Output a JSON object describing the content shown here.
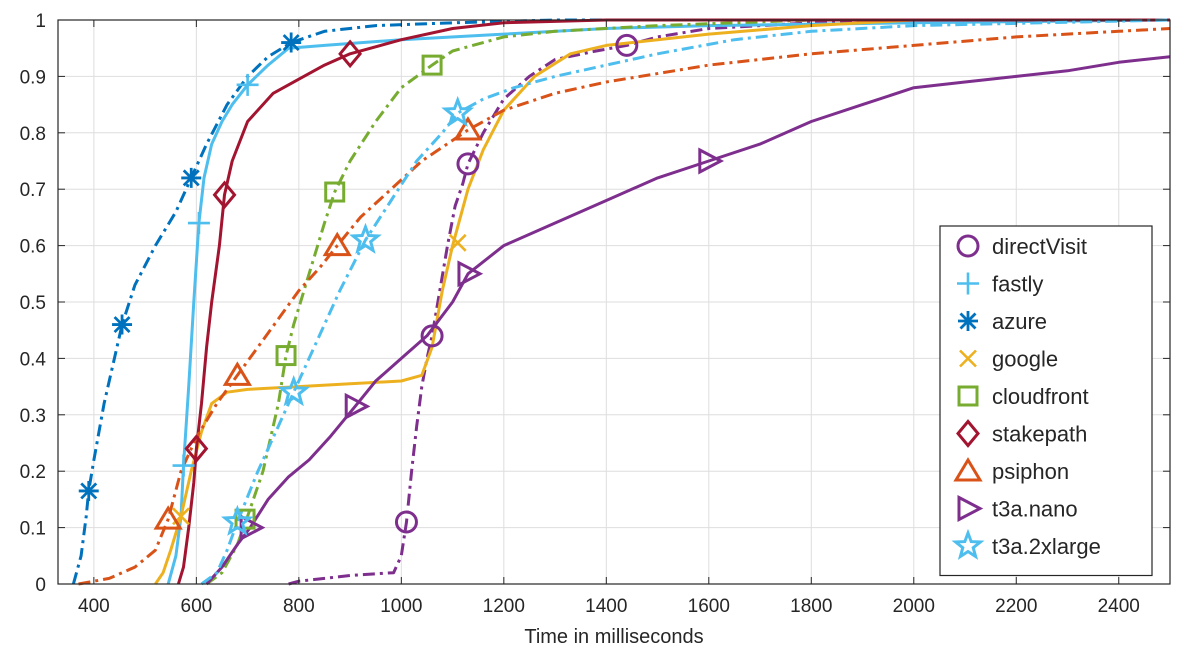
{
  "chart_data": {
    "type": "line",
    "title": "",
    "xlabel": "Time in milliseconds",
    "ylabel": "",
    "xlim": [
      330,
      2500
    ],
    "ylim": [
      0,
      1
    ],
    "x_ticks": [
      400,
      600,
      800,
      1000,
      1200,
      1400,
      1600,
      1800,
      2000,
      2200,
      2400
    ],
    "y_ticks": [
      0,
      0.1,
      0.2,
      0.3,
      0.4,
      0.5,
      0.6,
      0.7,
      0.8,
      0.9,
      1
    ],
    "grid": true,
    "legend_position": "right",
    "series": [
      {
        "name": "directVisit",
        "color": "#7E2F8E",
        "line_style": "dashdot",
        "marker": "circle",
        "points": [
          [
            780,
            0
          ],
          [
            800,
            0.005
          ],
          [
            850,
            0.01
          ],
          [
            900,
            0.015
          ],
          [
            950,
            0.018
          ],
          [
            985,
            0.02
          ],
          [
            1000,
            0.05
          ],
          [
            1010,
            0.11
          ],
          [
            1020,
            0.2
          ],
          [
            1030,
            0.28
          ],
          [
            1040,
            0.35
          ],
          [
            1050,
            0.4
          ],
          [
            1060,
            0.44
          ],
          [
            1075,
            0.52
          ],
          [
            1090,
            0.6
          ],
          [
            1105,
            0.67
          ],
          [
            1120,
            0.71
          ],
          [
            1130,
            0.745
          ],
          [
            1160,
            0.8
          ],
          [
            1200,
            0.86
          ],
          [
            1250,
            0.9
          ],
          [
            1300,
            0.93
          ],
          [
            1380,
            0.945
          ],
          [
            1440,
            0.955
          ],
          [
            1500,
            0.97
          ],
          [
            1600,
            0.985
          ],
          [
            1800,
            0.995
          ],
          [
            2000,
            1
          ],
          [
            2500,
            1
          ]
        ],
        "markers": [
          [
            1010,
            0.11
          ],
          [
            1060,
            0.44
          ],
          [
            1130,
            0.745
          ],
          [
            1440,
            0.955
          ]
        ]
      },
      {
        "name": "fastly",
        "color": "#4DBEEE",
        "line_style": "solid",
        "marker": "plus",
        "points": [
          [
            545,
            0
          ],
          [
            560,
            0.05
          ],
          [
            570,
            0.12
          ],
          [
            575,
            0.21
          ],
          [
            585,
            0.35
          ],
          [
            595,
            0.5
          ],
          [
            605,
            0.64
          ],
          [
            615,
            0.72
          ],
          [
            630,
            0.78
          ],
          [
            650,
            0.82
          ],
          [
            670,
            0.85
          ],
          [
            700,
            0.885
          ],
          [
            740,
            0.92
          ],
          [
            780,
            0.95
          ],
          [
            850,
            0.955
          ],
          [
            1000,
            0.965
          ],
          [
            1200,
            0.975
          ],
          [
            1400,
            0.985
          ],
          [
            1600,
            0.99
          ],
          [
            2000,
            0.995
          ],
          [
            2500,
            1
          ]
        ],
        "markers": [
          [
            575,
            0.21
          ],
          [
            605,
            0.64
          ],
          [
            700,
            0.885
          ]
        ]
      },
      {
        "name": "azure",
        "color": "#0072BD",
        "line_style": "dashdot",
        "marker": "asterisk",
        "points": [
          [
            360,
            0
          ],
          [
            375,
            0.05
          ],
          [
            385,
            0.12
          ],
          [
            390,
            0.165
          ],
          [
            400,
            0.22
          ],
          [
            420,
            0.32
          ],
          [
            440,
            0.4
          ],
          [
            455,
            0.46
          ],
          [
            480,
            0.53
          ],
          [
            520,
            0.6
          ],
          [
            560,
            0.66
          ],
          [
            590,
            0.72
          ],
          [
            620,
            0.78
          ],
          [
            660,
            0.85
          ],
          [
            700,
            0.9
          ],
          [
            740,
            0.935
          ],
          [
            785,
            0.96
          ],
          [
            850,
            0.98
          ],
          [
            950,
            0.99
          ],
          [
            1100,
            0.995
          ],
          [
            1300,
            1
          ],
          [
            2500,
            1
          ]
        ],
        "markers": [
          [
            390,
            0.165
          ],
          [
            455,
            0.46
          ],
          [
            590,
            0.72
          ],
          [
            785,
            0.96
          ]
        ]
      },
      {
        "name": "google",
        "color": "#EDB120",
        "line_style": "solid",
        "marker": "x",
        "points": [
          [
            520,
            0
          ],
          [
            535,
            0.02
          ],
          [
            550,
            0.06
          ],
          [
            570,
            0.12
          ],
          [
            590,
            0.2
          ],
          [
            610,
            0.27
          ],
          [
            630,
            0.32
          ],
          [
            660,
            0.34
          ],
          [
            700,
            0.345
          ],
          [
            800,
            0.35
          ],
          [
            900,
            0.355
          ],
          [
            1000,
            0.36
          ],
          [
            1040,
            0.37
          ],
          [
            1060,
            0.42
          ],
          [
            1080,
            0.52
          ],
          [
            1100,
            0.6
          ],
          [
            1130,
            0.7
          ],
          [
            1160,
            0.77
          ],
          [
            1200,
            0.84
          ],
          [
            1260,
            0.9
          ],
          [
            1330,
            0.94
          ],
          [
            1400,
            0.955
          ],
          [
            1500,
            0.965
          ],
          [
            1600,
            0.975
          ],
          [
            1800,
            0.99
          ],
          [
            2000,
            1
          ],
          [
            2500,
            1
          ]
        ],
        "markers": [
          [
            570,
            0.12
          ],
          [
            1110,
            0.605
          ]
        ]
      },
      {
        "name": "cloudfront",
        "color": "#77AC30",
        "line_style": "dashdot",
        "marker": "square",
        "points": [
          [
            620,
            0
          ],
          [
            650,
            0.02
          ],
          [
            680,
            0.07
          ],
          [
            700,
            0.12
          ],
          [
            730,
            0.2
          ],
          [
            760,
            0.32
          ],
          [
            775,
            0.405
          ],
          [
            790,
            0.46
          ],
          [
            820,
            0.55
          ],
          [
            850,
            0.64
          ],
          [
            870,
            0.695
          ],
          [
            900,
            0.75
          ],
          [
            950,
            0.82
          ],
          [
            1000,
            0.88
          ],
          [
            1060,
            0.92
          ],
          [
            1100,
            0.945
          ],
          [
            1200,
            0.97
          ],
          [
            1300,
            0.98
          ],
          [
            1500,
            0.99
          ],
          [
            1800,
            1
          ],
          [
            2500,
            1
          ]
        ],
        "markers": [
          [
            695,
            0.115
          ],
          [
            775,
            0.405
          ],
          [
            870,
            0.695
          ],
          [
            1060,
            0.92
          ]
        ]
      },
      {
        "name": "stakepath",
        "color": "#A2142F",
        "line_style": "solid",
        "marker": "diamond",
        "points": [
          [
            565,
            0
          ],
          [
            575,
            0.03
          ],
          [
            585,
            0.1
          ],
          [
            595,
            0.18
          ],
          [
            600,
            0.24
          ],
          [
            610,
            0.32
          ],
          [
            620,
            0.42
          ],
          [
            630,
            0.5
          ],
          [
            645,
            0.6
          ],
          [
            655,
            0.69
          ],
          [
            670,
            0.75
          ],
          [
            700,
            0.82
          ],
          [
            750,
            0.87
          ],
          [
            800,
            0.895
          ],
          [
            850,
            0.92
          ],
          [
            900,
            0.94
          ],
          [
            1000,
            0.965
          ],
          [
            1100,
            0.985
          ],
          [
            1200,
            0.995
          ],
          [
            1400,
            1
          ],
          [
            2500,
            1
          ]
        ],
        "markers": [
          [
            600,
            0.24
          ],
          [
            655,
            0.69
          ],
          [
            900,
            0.94
          ]
        ]
      },
      {
        "name": "psiphon",
        "color": "#D95319",
        "line_style": "dashdot",
        "marker": "triangle",
        "points": [
          [
            370,
            0
          ],
          [
            400,
            0.005
          ],
          [
            430,
            0.01
          ],
          [
            480,
            0.03
          ],
          [
            520,
            0.06
          ],
          [
            545,
            0.115
          ],
          [
            570,
            0.2
          ],
          [
            600,
            0.26
          ],
          [
            640,
            0.32
          ],
          [
            680,
            0.37
          ],
          [
            720,
            0.42
          ],
          [
            760,
            0.47
          ],
          [
            800,
            0.52
          ],
          [
            840,
            0.56
          ],
          [
            875,
            0.6
          ],
          [
            920,
            0.65
          ],
          [
            980,
            0.7
          ],
          [
            1040,
            0.75
          ],
          [
            1130,
            0.805
          ],
          [
            1200,
            0.84
          ],
          [
            1300,
            0.87
          ],
          [
            1400,
            0.89
          ],
          [
            1600,
            0.92
          ],
          [
            1800,
            0.94
          ],
          [
            2000,
            0.955
          ],
          [
            2200,
            0.97
          ],
          [
            2400,
            0.98
          ],
          [
            2500,
            0.985
          ]
        ],
        "markers": [
          [
            545,
            0.115
          ],
          [
            680,
            0.37
          ],
          [
            875,
            0.6
          ],
          [
            1130,
            0.805
          ]
        ]
      },
      {
        "name": "t3a.nano",
        "color": "#7E2F8E",
        "line_style": "solid",
        "marker": "triangle-right",
        "points": [
          [
            620,
            0
          ],
          [
            650,
            0.03
          ],
          [
            680,
            0.07
          ],
          [
            705,
            0.1
          ],
          [
            740,
            0.15
          ],
          [
            780,
            0.19
          ],
          [
            820,
            0.22
          ],
          [
            860,
            0.26
          ],
          [
            910,
            0.315
          ],
          [
            950,
            0.36
          ],
          [
            1000,
            0.4
          ],
          [
            1050,
            0.44
          ],
          [
            1100,
            0.5
          ],
          [
            1130,
            0.55
          ],
          [
            1200,
            0.6
          ],
          [
            1300,
            0.64
          ],
          [
            1400,
            0.68
          ],
          [
            1500,
            0.72
          ],
          [
            1600,
            0.75
          ],
          [
            1700,
            0.78
          ],
          [
            1800,
            0.82
          ],
          [
            1900,
            0.85
          ],
          [
            2000,
            0.88
          ],
          [
            2100,
            0.89
          ],
          [
            2200,
            0.9
          ],
          [
            2300,
            0.91
          ],
          [
            2400,
            0.925
          ],
          [
            2500,
            0.935
          ]
        ],
        "markers": [
          [
            705,
            0.1
          ],
          [
            910,
            0.315
          ],
          [
            1130,
            0.55
          ],
          [
            1600,
            0.75
          ]
        ]
      },
      {
        "name": "t3a.2xlarge",
        "color": "#4DBEEE",
        "line_style": "dashdot",
        "marker": "star",
        "points": [
          [
            610,
            0
          ],
          [
            640,
            0.02
          ],
          [
            660,
            0.06
          ],
          [
            680,
            0.11
          ],
          [
            720,
            0.2
          ],
          [
            760,
            0.28
          ],
          [
            790,
            0.34
          ],
          [
            830,
            0.42
          ],
          [
            880,
            0.52
          ],
          [
            930,
            0.61
          ],
          [
            980,
            0.68
          ],
          [
            1030,
            0.75
          ],
          [
            1080,
            0.8
          ],
          [
            1110,
            0.835
          ],
          [
            1160,
            0.86
          ],
          [
            1220,
            0.88
          ],
          [
            1300,
            0.9
          ],
          [
            1400,
            0.92
          ],
          [
            1500,
            0.94
          ],
          [
            1650,
            0.965
          ],
          [
            1800,
            0.98
          ],
          [
            2000,
            0.99
          ],
          [
            2500,
            1
          ]
        ],
        "markers": [
          [
            680,
            0.11
          ],
          [
            790,
            0.34
          ],
          [
            930,
            0.61
          ],
          [
            1110,
            0.835
          ]
        ]
      }
    ]
  }
}
